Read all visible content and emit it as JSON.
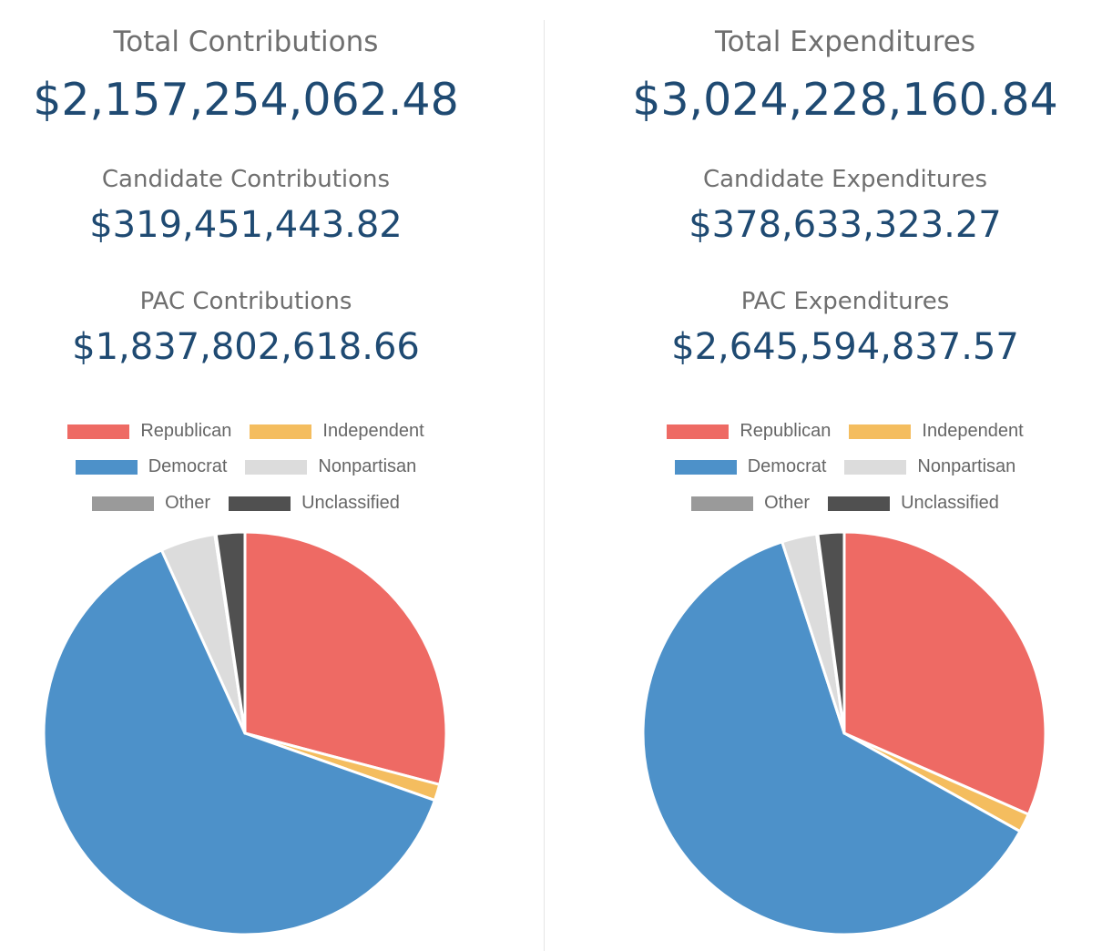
{
  "colors": {
    "Republican": "#ee6a64",
    "Independent": "#f4bd5f",
    "Democrat": "#4d91c9",
    "Nonpartisan": "#dcdcdc",
    "Other": "#9a9a9a",
    "Unclassified": "#505050"
  },
  "contributions": {
    "total_label": "Total Contributions",
    "total_value": "$2,157,254,062.48",
    "candidate_label": "Candidate Contributions",
    "candidate_value": "$319,451,443.82",
    "pac_label": "PAC Contributions",
    "pac_value": "$1,837,802,618.66",
    "legend": [
      "Republican",
      "Independent",
      "Democrat",
      "Nonpartisan",
      "Other",
      "Unclassified"
    ]
  },
  "expenditures": {
    "total_label": "Total Expenditures",
    "total_value": "$3,024,228,160.84",
    "candidate_label": "Candidate Expenditures",
    "candidate_value": "$378,633,323.27",
    "pac_label": "PAC Expenditures",
    "pac_value": "$2,645,594,837.57",
    "legend": [
      "Republican",
      "Independent",
      "Democrat",
      "Nonpartisan",
      "Other",
      "Unclassified"
    ]
  },
  "chart_data": [
    {
      "type": "pie",
      "title": "",
      "labels": [
        "Republican",
        "Independent",
        "Democrat",
        "Nonpartisan",
        "Other",
        "Unclassified"
      ],
      "values": [
        29.1,
        1.3,
        62.8,
        4.4,
        0.1,
        2.3
      ],
      "unit": "percent",
      "legend_position": "top"
    },
    {
      "type": "pie",
      "title": "",
      "labels": [
        "Republican",
        "Independent",
        "Democrat",
        "Nonpartisan",
        "Other",
        "Unclassified"
      ],
      "values": [
        31.6,
        1.5,
        61.9,
        2.8,
        0.1,
        2.1
      ],
      "unit": "percent",
      "legend_position": "top"
    }
  ]
}
